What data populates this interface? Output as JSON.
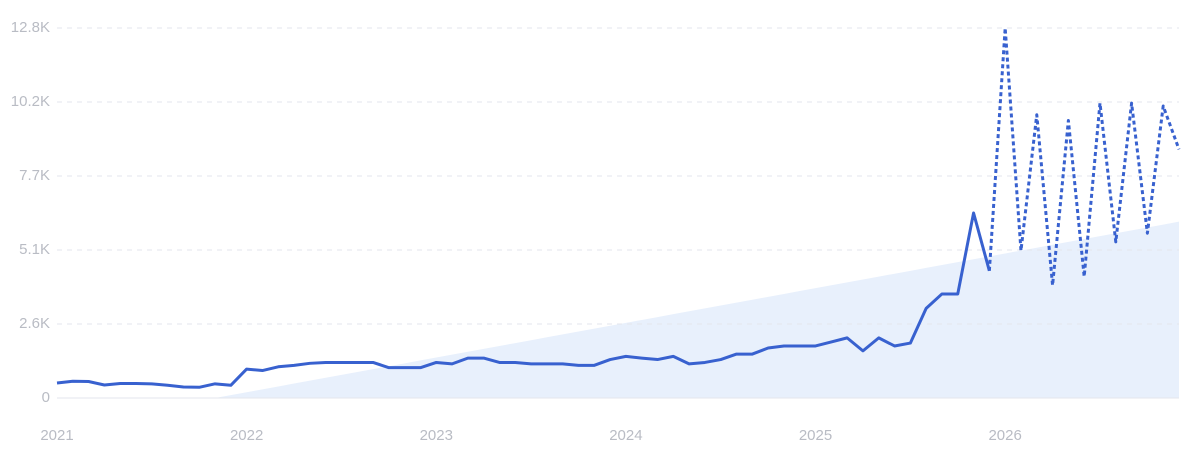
{
  "chart_data": {
    "type": "line",
    "categories": [
      "2021",
      null,
      null,
      null,
      null,
      null,
      null,
      null,
      null,
      null,
      null,
      null,
      "2022",
      null,
      null,
      null,
      null,
      null,
      null,
      null,
      null,
      null,
      null,
      null,
      "2023",
      null,
      null,
      null,
      null,
      null,
      null,
      null,
      null,
      null,
      null,
      null,
      "2024",
      null,
      null,
      null,
      null,
      null,
      null,
      null,
      null,
      null,
      null,
      null,
      "2025",
      null,
      null,
      null,
      null,
      null,
      null,
      null,
      null,
      null,
      null,
      null,
      "2026",
      null,
      null,
      null,
      null,
      null,
      null,
      null,
      null,
      null,
      null,
      null
    ],
    "series": [
      {
        "style": "area",
        "color": "#e8f0fc",
        "values": [
          null,
          null,
          null,
          null,
          null,
          null,
          null,
          null,
          null,
          null,
          0,
          100,
          200,
          300,
          400,
          500,
          600,
          700,
          800,
          900,
          1000,
          1100,
          1200,
          1300,
          1400,
          1500,
          1600,
          1700,
          1800,
          1900,
          2000,
          2100,
          2200,
          2300,
          2400,
          2500,
          2600,
          2700,
          2800,
          2900,
          3000,
          3100,
          3200,
          3300,
          3400,
          3500,
          3600,
          3700,
          3800,
          3900,
          4000,
          4100,
          4200,
          4300,
          4400,
          4500,
          4600,
          4700,
          4800,
          4900,
          5000,
          5100,
          5200,
          5300,
          5400,
          5500,
          5600,
          5700,
          5800,
          5900,
          6000,
          6100
        ]
      },
      {
        "style": "solid",
        "color": "#3861cf",
        "values": [
          520,
          580,
          570,
          450,
          500,
          500,
          490,
          440,
          380,
          370,
          490,
          440,
          1000,
          950,
          1080,
          1130,
          1200,
          1230,
          1230,
          1230,
          1230,
          1050,
          1050,
          1050,
          1230,
          1180,
          1380,
          1380,
          1230,
          1230,
          1180,
          1180,
          1180,
          1130,
          1130,
          1330,
          1440,
          1380,
          1330,
          1440,
          1180,
          1230,
          1330,
          1520,
          1520,
          1730,
          1800,
          1800,
          1800,
          1940,
          2080,
          1630,
          2080,
          1800,
          1900,
          3100,
          3600,
          3600,
          6400,
          4400,
          null,
          null,
          null,
          null,
          null,
          null,
          null,
          null,
          null,
          null,
          null,
          null
        ]
      },
      {
        "style": "dotted",
        "color": "#3861cf",
        "values": [
          null,
          null,
          null,
          null,
          null,
          null,
          null,
          null,
          null,
          null,
          null,
          null,
          null,
          null,
          null,
          null,
          null,
          null,
          null,
          null,
          null,
          null,
          null,
          null,
          null,
          null,
          null,
          null,
          null,
          null,
          null,
          null,
          null,
          null,
          null,
          null,
          null,
          null,
          null,
          null,
          null,
          null,
          null,
          null,
          null,
          null,
          null,
          null,
          null,
          null,
          null,
          null,
          null,
          null,
          null,
          null,
          null,
          null,
          null,
          4400,
          12800,
          5100,
          9800,
          3900,
          9600,
          4200,
          10200,
          5400,
          10200,
          5700,
          10100,
          8600
        ]
      }
    ],
    "ylim": [
      0,
      12800
    ],
    "yticks": [
      0,
      {
        "value": 2560,
        "label": "2.6K"
      },
      {
        "value": 5120,
        "label": "5.1K"
      },
      {
        "value": 7680,
        "label": "7.7K"
      },
      {
        "value": 10240,
        "label": "10.2K"
      },
      {
        "value": 12800,
        "label": "12.8K"
      }
    ],
    "grid": true
  }
}
